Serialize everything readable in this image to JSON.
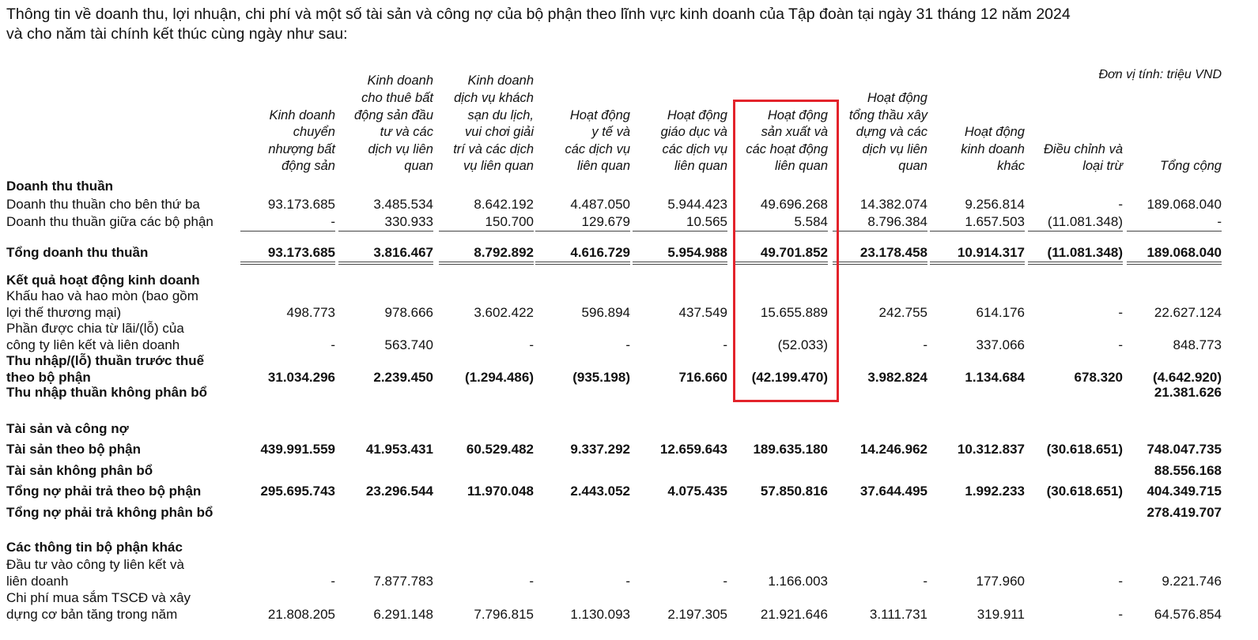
{
  "intro": [
    "Thông tin về doanh thu, lợi nhuận, chi phí và một số tài sản và công nợ của bộ phận theo lĩnh vực kinh doanh của Tập đoàn tại ngày 31 tháng 12 năm 2024",
    "và cho năm tài chính kết thúc cùng ngày như sau:"
  ],
  "unit": "Đơn vị tính: triệu VND",
  "highlight_color": "#e3232b",
  "highlighted_column": 5,
  "columns": [
    [
      "Kinh doanh",
      "chuyển",
      "nhượng bất",
      "động sản"
    ],
    [
      "Kinh doanh",
      "cho thuê bất",
      "động sản đầu",
      "tư và các",
      "dịch vụ liên",
      "quan"
    ],
    [
      "Kinh doanh",
      "dịch vụ khách",
      "sạn du lịch,",
      "vui chơi giải",
      "trí và các dịch",
      "vụ liên quan"
    ],
    [
      "Hoạt động",
      "y tế và",
      "các dịch vụ",
      "liên quan"
    ],
    [
      "Hoạt động",
      "giáo dục và",
      "các dịch vụ",
      "liên quan"
    ],
    [
      "Hoạt động",
      "sản xuất và",
      "các hoạt động",
      "liên quan"
    ],
    [
      "Hoạt động",
      "tổng thầu xây",
      "dựng và các",
      "dịch vụ liên",
      "quan"
    ],
    [
      "Hoạt động",
      "kinh doanh",
      "khác"
    ],
    [
      "Điều chỉnh và",
      "loại trừ"
    ],
    [
      "Tổng cộng"
    ]
  ],
  "rows": [
    {
      "label": [
        "Doanh thu thuần"
      ],
      "bold": true,
      "values": []
    },
    {
      "label": [
        "Doanh thu thuần cho bên thứ ba"
      ],
      "values": [
        "93.173.685",
        "3.485.534",
        "8.642.192",
        "4.487.050",
        "5.944.423",
        "49.696.268",
        "14.382.074",
        "9.256.814",
        "-",
        "189.068.040"
      ]
    },
    {
      "label": [
        "Doanh thu thuần giữa các bộ phận"
      ],
      "values": [
        "-",
        "330.933",
        "150.700",
        "129.679",
        "10.565",
        "5.584",
        "8.796.384",
        "1.657.503",
        "(11.081.348)",
        "-"
      ]
    },
    {
      "label": [
        "Tổng doanh thu thuần"
      ],
      "bold": true,
      "values": [
        "93.173.685",
        "3.816.467",
        "8.792.892",
        "4.616.729",
        "5.954.988",
        "49.701.852",
        "23.178.458",
        "10.914.317",
        "(11.081.348)",
        "189.068.040"
      ]
    },
    {
      "label": [
        "Kết quả hoạt động kinh doanh"
      ],
      "bold": true,
      "values": []
    },
    {
      "label": [
        "Khấu hao và hao mòn (bao gồm",
        "lợi thế thương mại)"
      ],
      "values": [
        "498.773",
        "978.666",
        "3.602.422",
        "596.894",
        "437.549",
        "15.655.889",
        "242.755",
        "614.176",
        "-",
        "22.627.124"
      ]
    },
    {
      "label": [
        "Phần được chia từ lãi/(lỗ) của",
        "công ty liên kết và liên doanh"
      ],
      "values": [
        "-",
        "563.740",
        "-",
        "-",
        "-",
        "(52.033)",
        "-",
        "337.066",
        "-",
        "848.773"
      ]
    },
    {
      "label": [
        "Thu nhập/(lỗ) thuần trước thuế",
        "theo bộ phận"
      ],
      "bold": true,
      "values": [
        "31.034.296",
        "2.239.450",
        "(1.294.486)",
        "(935.198)",
        "716.660",
        "(42.199.470)",
        "3.982.824",
        "1.134.684",
        "678.320",
        "(4.642.920)"
      ]
    },
    {
      "label": [
        "Thu nhập thuần không phân bổ"
      ],
      "bold": true,
      "values": [
        "",
        "",
        "",
        "",
        "",
        "",
        "",
        "",
        "",
        "21.381.626"
      ]
    },
    {
      "label": [
        "Tài sản và công nợ"
      ],
      "bold": true,
      "values": []
    },
    {
      "label": [
        "Tài sản theo bộ phận"
      ],
      "bold": true,
      "values": [
        "439.991.559",
        "41.953.431",
        "60.529.482",
        "9.337.292",
        "12.659.643",
        "189.635.180",
        "14.246.962",
        "10.312.837",
        "(30.618.651)",
        "748.047.735"
      ]
    },
    {
      "label": [
        "Tài sản không phân bổ"
      ],
      "bold": true,
      "values": [
        "",
        "",
        "",
        "",
        "",
        "",
        "",
        "",
        "",
        "88.556.168"
      ]
    },
    {
      "label": [
        "Tổng nợ phải trả theo bộ phận"
      ],
      "bold": true,
      "values": [
        "295.695.743",
        "23.296.544",
        "11.970.048",
        "2.443.052",
        "4.075.435",
        "57.850.816",
        "37.644.495",
        "1.992.233",
        "(30.618.651)",
        "404.349.715"
      ]
    },
    {
      "label": [
        "Tổng nợ phải trả không phân bổ"
      ],
      "bold": true,
      "values": [
        "",
        "",
        "",
        "",
        "",
        "",
        "",
        "",
        "",
        "278.419.707"
      ]
    },
    {
      "label": [
        "Các thông tin bộ phận khác"
      ],
      "bold": true,
      "values": []
    },
    {
      "label": [
        "Đầu tư vào công ty liên kết và",
        "liên doanh"
      ],
      "values": [
        "-",
        "7.877.783",
        "-",
        "-",
        "-",
        "1.166.003",
        "-",
        "177.960",
        "-",
        "9.221.746"
      ]
    },
    {
      "label": [
        "Chi phí mua sắm TSCĐ và xây",
        "dựng cơ bản tăng trong năm"
      ],
      "values": [
        "21.808.205",
        "6.291.148",
        "7.796.815",
        "1.130.093",
        "2.197.305",
        "21.921.646",
        "3.111.731",
        "319.911",
        "-",
        "64.576.854"
      ]
    }
  ]
}
